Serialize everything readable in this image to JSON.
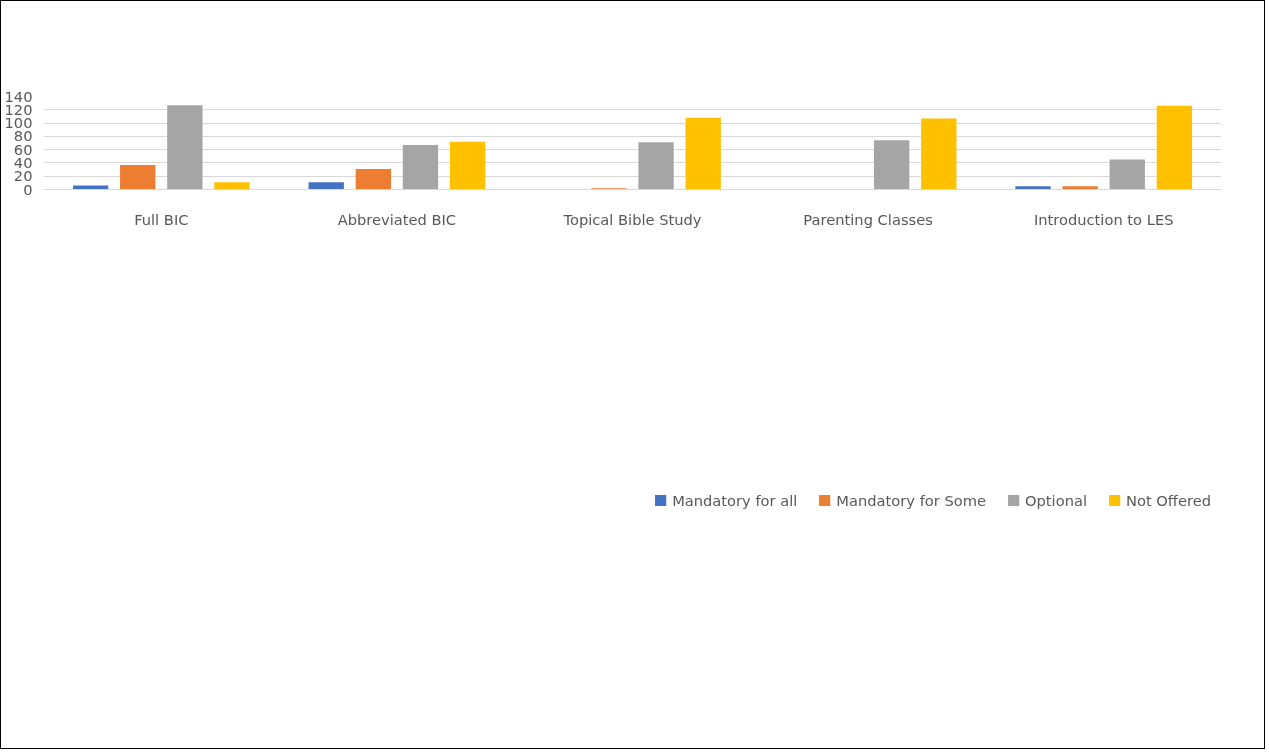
{
  "chart_data": {
    "type": "bar",
    "categories": [
      "Full BIC",
      "Abbreviated BIC",
      "Topical Bible Study",
      "Parenting Classes",
      "Introduction to LES"
    ],
    "series": [
      {
        "name": "Mandatory for all",
        "color": "#4472c4",
        "values": [
          6,
          11,
          0,
          0,
          5
        ]
      },
      {
        "name": "Mandatory for Some",
        "color": "#ed7d31",
        "values": [
          37,
          31,
          2,
          0,
          5
        ]
      },
      {
        "name": "Optional",
        "color": "#a5a5a5",
        "values": [
          127,
          67,
          71,
          74,
          45
        ]
      },
      {
        "name": "Not Offered",
        "color": "#ffc000",
        "values": [
          11,
          72,
          108,
          107,
          126
        ]
      }
    ],
    "ylim": [
      0,
      140
    ],
    "yticks": [
      0,
      20,
      40,
      60,
      80,
      100,
      120,
      140
    ],
    "grid": "y",
    "legend": "bottom"
  }
}
